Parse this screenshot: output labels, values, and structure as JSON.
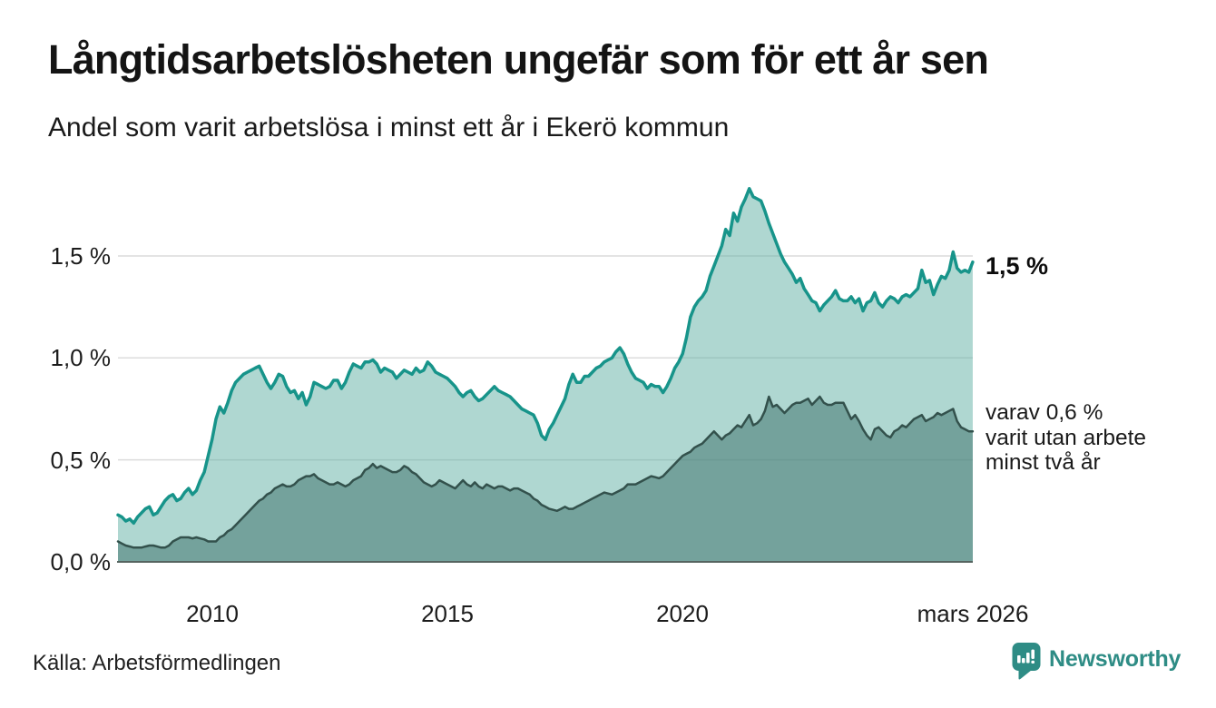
{
  "header": {
    "title": "Långtidsarbetslösheten ungefär som för ett år sen",
    "subtitle": "Andel som varit arbetslösa i minst ett år i Ekerö kommun"
  },
  "footer": {
    "source": "Källa: Arbetsförmedlingen",
    "brand": "Newsworthy",
    "brand_color": "#2e8c85"
  },
  "chart_data": {
    "type": "area",
    "title": "Långtidsarbetslösheten ungefär som för ett år sen",
    "subtitle": "Andel som varit arbetslösa i minst ett år i Ekerö kommun",
    "unit": "%",
    "grid": true,
    "style": {
      "gridline_color": "#dcdcdc",
      "baseline_color": "#566460",
      "background": "#ffffff"
    },
    "x_axis": {
      "label": "",
      "range_years": [
        2008.0,
        2026.25
      ],
      "ticks": [
        {
          "year": 2010,
          "label": "2010"
        },
        {
          "year": 2015,
          "label": "2015"
        },
        {
          "year": 2020,
          "label": "2020"
        },
        {
          "year": 2026.17,
          "label": "mars 2026"
        }
      ]
    },
    "y_axis": {
      "label": "",
      "range": [
        0,
        1.9
      ],
      "ticks": [
        {
          "value": 1.5,
          "label": "1,5 %"
        },
        {
          "value": 1.0,
          "label": "1,0 %"
        },
        {
          "value": 0.5,
          "label": "0,5 %"
        },
        {
          "value": 0.0,
          "label": "0,0 %"
        }
      ]
    },
    "series": [
      {
        "name": "arbetslosa-minst-ett-ar",
        "description": "Andel arbetslösa minst ett år",
        "end_label": "1,5 %",
        "latest_value": 1.5,
        "line_color": "#17948a",
        "fill_color": "rgba(96,175,163,0.5)",
        "start_year": 2008,
        "step_months": 1,
        "values": [
          0.23,
          0.22,
          0.2,
          0.21,
          0.19,
          0.22,
          0.24,
          0.26,
          0.27,
          0.23,
          0.24,
          0.27,
          0.3,
          0.32,
          0.33,
          0.3,
          0.31,
          0.34,
          0.36,
          0.33,
          0.35,
          0.4,
          0.44,
          0.52,
          0.6,
          0.7,
          0.76,
          0.73,
          0.78,
          0.84,
          0.88,
          0.9,
          0.92,
          0.93,
          0.94,
          0.95,
          0.96,
          0.92,
          0.88,
          0.85,
          0.88,
          0.92,
          0.91,
          0.86,
          0.83,
          0.84,
          0.8,
          0.83,
          0.77,
          0.81,
          0.88,
          0.87,
          0.86,
          0.85,
          0.86,
          0.89,
          0.89,
          0.85,
          0.88,
          0.93,
          0.97,
          0.96,
          0.95,
          0.98,
          0.98,
          0.99,
          0.97,
          0.93,
          0.95,
          0.94,
          0.93,
          0.9,
          0.92,
          0.94,
          0.93,
          0.92,
          0.95,
          0.93,
          0.94,
          0.98,
          0.96,
          0.93,
          0.92,
          0.91,
          0.9,
          0.88,
          0.86,
          0.83,
          0.81,
          0.83,
          0.84,
          0.81,
          0.79,
          0.8,
          0.82,
          0.84,
          0.86,
          0.84,
          0.83,
          0.82,
          0.81,
          0.79,
          0.77,
          0.75,
          0.74,
          0.73,
          0.72,
          0.68,
          0.62,
          0.6,
          0.65,
          0.68,
          0.72,
          0.76,
          0.8,
          0.87,
          0.92,
          0.88,
          0.88,
          0.91,
          0.91,
          0.93,
          0.95,
          0.96,
          0.98,
          0.99,
          1.0,
          1.03,
          1.05,
          1.02,
          0.97,
          0.93,
          0.9,
          0.89,
          0.88,
          0.85,
          0.87,
          0.86,
          0.86,
          0.83,
          0.86,
          0.9,
          0.95,
          0.98,
          1.02,
          1.1,
          1.2,
          1.25,
          1.28,
          1.3,
          1.33,
          1.4,
          1.45,
          1.5,
          1.55,
          1.63,
          1.6,
          1.71,
          1.67,
          1.74,
          1.78,
          1.83,
          1.79,
          1.78,
          1.77,
          1.72,
          1.66,
          1.61,
          1.56,
          1.51,
          1.47,
          1.44,
          1.41,
          1.37,
          1.39,
          1.34,
          1.31,
          1.28,
          1.27,
          1.23,
          1.26,
          1.28,
          1.3,
          1.33,
          1.29,
          1.28,
          1.28,
          1.3,
          1.27,
          1.29,
          1.23,
          1.27,
          1.28,
          1.32,
          1.27,
          1.25,
          1.28,
          1.3,
          1.29,
          1.27,
          1.3,
          1.31,
          1.3,
          1.32,
          1.34,
          1.43,
          1.37,
          1.38,
          1.31,
          1.36,
          1.4,
          1.39,
          1.43,
          1.52,
          1.44,
          1.42,
          1.43,
          1.42,
          1.47
        ]
      },
      {
        "name": "utan-arbete-minst-tva-ar",
        "description": "varav andel utan arbete minst två år",
        "annotation_lines": [
          "varav 0,6 %",
          "varit utan arbete",
          "minst två år"
        ],
        "latest_value": 0.6,
        "line_color": "#33514c",
        "fill_color": "rgba(58,110,103,0.5)",
        "start_year": 2008,
        "step_months": 1,
        "values": [
          0.1,
          0.09,
          0.08,
          0.075,
          0.07,
          0.07,
          0.07,
          0.075,
          0.08,
          0.08,
          0.075,
          0.07,
          0.07,
          0.08,
          0.1,
          0.11,
          0.12,
          0.12,
          0.12,
          0.115,
          0.12,
          0.115,
          0.11,
          0.1,
          0.1,
          0.1,
          0.12,
          0.13,
          0.15,
          0.16,
          0.18,
          0.2,
          0.22,
          0.24,
          0.26,
          0.28,
          0.3,
          0.31,
          0.33,
          0.34,
          0.36,
          0.37,
          0.38,
          0.37,
          0.37,
          0.38,
          0.4,
          0.41,
          0.42,
          0.42,
          0.43,
          0.41,
          0.4,
          0.39,
          0.38,
          0.38,
          0.39,
          0.38,
          0.37,
          0.38,
          0.4,
          0.41,
          0.42,
          0.45,
          0.46,
          0.48,
          0.46,
          0.47,
          0.46,
          0.45,
          0.44,
          0.44,
          0.45,
          0.47,
          0.46,
          0.44,
          0.43,
          0.41,
          0.39,
          0.38,
          0.37,
          0.38,
          0.4,
          0.39,
          0.38,
          0.37,
          0.36,
          0.38,
          0.4,
          0.38,
          0.37,
          0.39,
          0.37,
          0.36,
          0.38,
          0.37,
          0.36,
          0.37,
          0.37,
          0.36,
          0.35,
          0.36,
          0.36,
          0.35,
          0.34,
          0.33,
          0.31,
          0.3,
          0.28,
          0.27,
          0.26,
          0.255,
          0.25,
          0.26,
          0.27,
          0.26,
          0.26,
          0.27,
          0.28,
          0.29,
          0.3,
          0.31,
          0.32,
          0.33,
          0.34,
          0.335,
          0.33,
          0.34,
          0.35,
          0.36,
          0.38,
          0.38,
          0.38,
          0.39,
          0.4,
          0.41,
          0.42,
          0.415,
          0.41,
          0.42,
          0.44,
          0.46,
          0.48,
          0.5,
          0.52,
          0.53,
          0.54,
          0.56,
          0.57,
          0.58,
          0.6,
          0.62,
          0.64,
          0.62,
          0.6,
          0.62,
          0.63,
          0.65,
          0.67,
          0.66,
          0.69,
          0.72,
          0.67,
          0.68,
          0.7,
          0.74,
          0.81,
          0.76,
          0.77,
          0.75,
          0.73,
          0.75,
          0.77,
          0.78,
          0.78,
          0.79,
          0.8,
          0.77,
          0.79,
          0.81,
          0.78,
          0.77,
          0.77,
          0.78,
          0.78,
          0.78,
          0.74,
          0.7,
          0.72,
          0.69,
          0.65,
          0.62,
          0.6,
          0.65,
          0.66,
          0.64,
          0.62,
          0.61,
          0.64,
          0.65,
          0.67,
          0.66,
          0.68,
          0.7,
          0.71,
          0.72,
          0.69,
          0.7,
          0.71,
          0.73,
          0.72,
          0.73,
          0.74,
          0.75,
          0.69,
          0.66,
          0.65,
          0.64,
          0.64
        ]
      }
    ]
  }
}
